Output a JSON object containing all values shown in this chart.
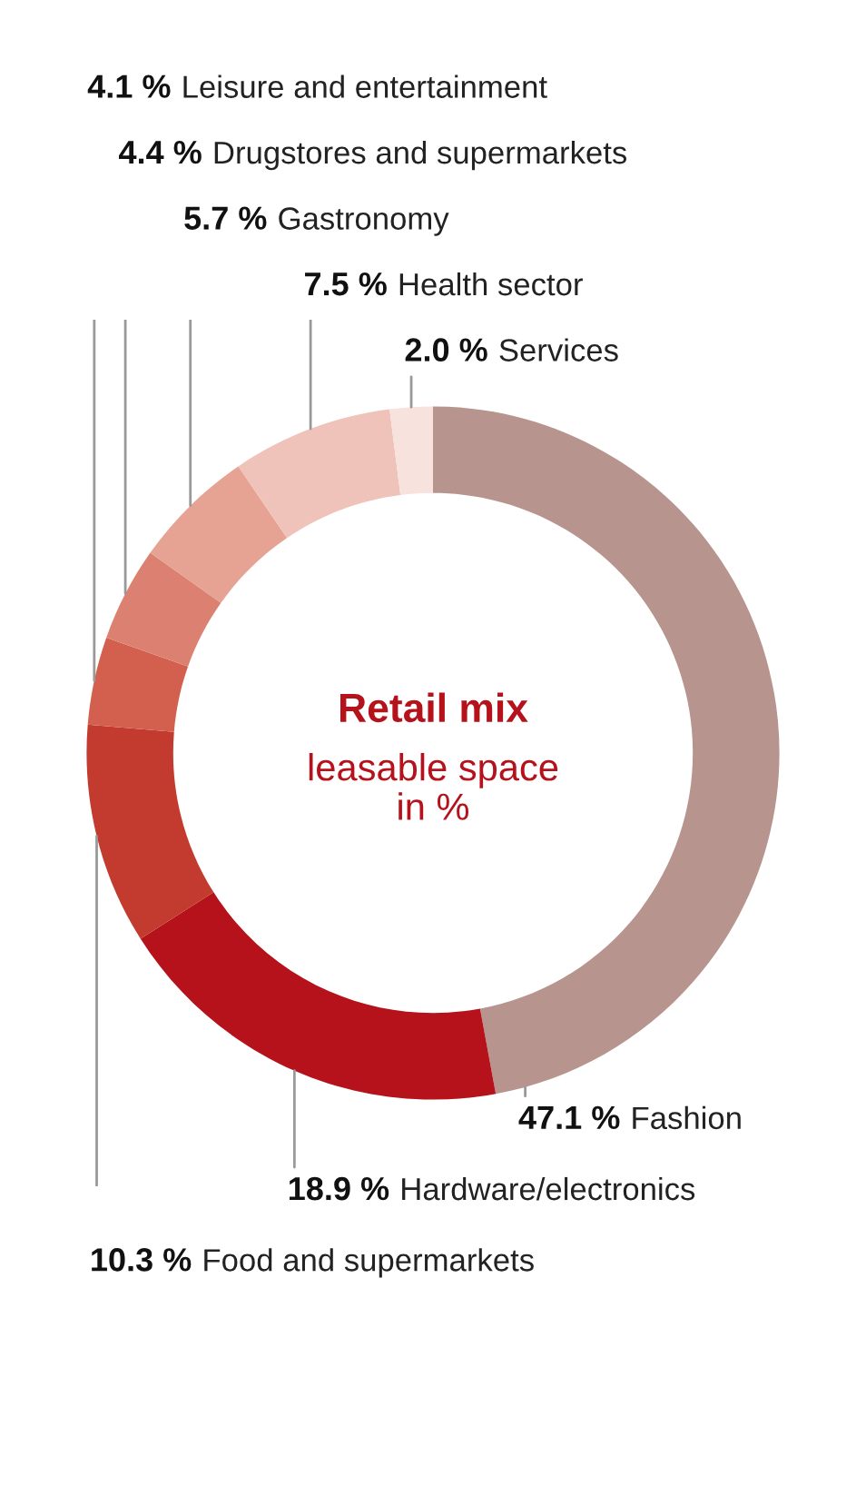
{
  "chart_data": {
    "type": "donut",
    "title": "Retail mix",
    "subtitle": "leasable space\nin %",
    "categories": [
      "Fashion",
      "Hardware/electronics",
      "Food and supermarkets",
      "Leisure and entertainment",
      "Drugstores and supermarkets",
      "Gastronomy",
      "Health sector",
      "Services"
    ],
    "values": [
      47.1,
      18.9,
      10.3,
      4.1,
      4.4,
      5.7,
      7.5,
      2.0
    ],
    "value_labels": [
      "47.1 %",
      "18.9 %",
      "10.3 %",
      "4.1 %",
      "4.4 %",
      "5.7 %",
      "7.5 %",
      "2.0 %"
    ],
    "colors": [
      "#b8948e",
      "#b5121b",
      "#c33a2e",
      "#d3604f",
      "#dc8171",
      "#e6a393",
      "#efc3b9",
      "#f8e2de"
    ],
    "legend": false
  }
}
